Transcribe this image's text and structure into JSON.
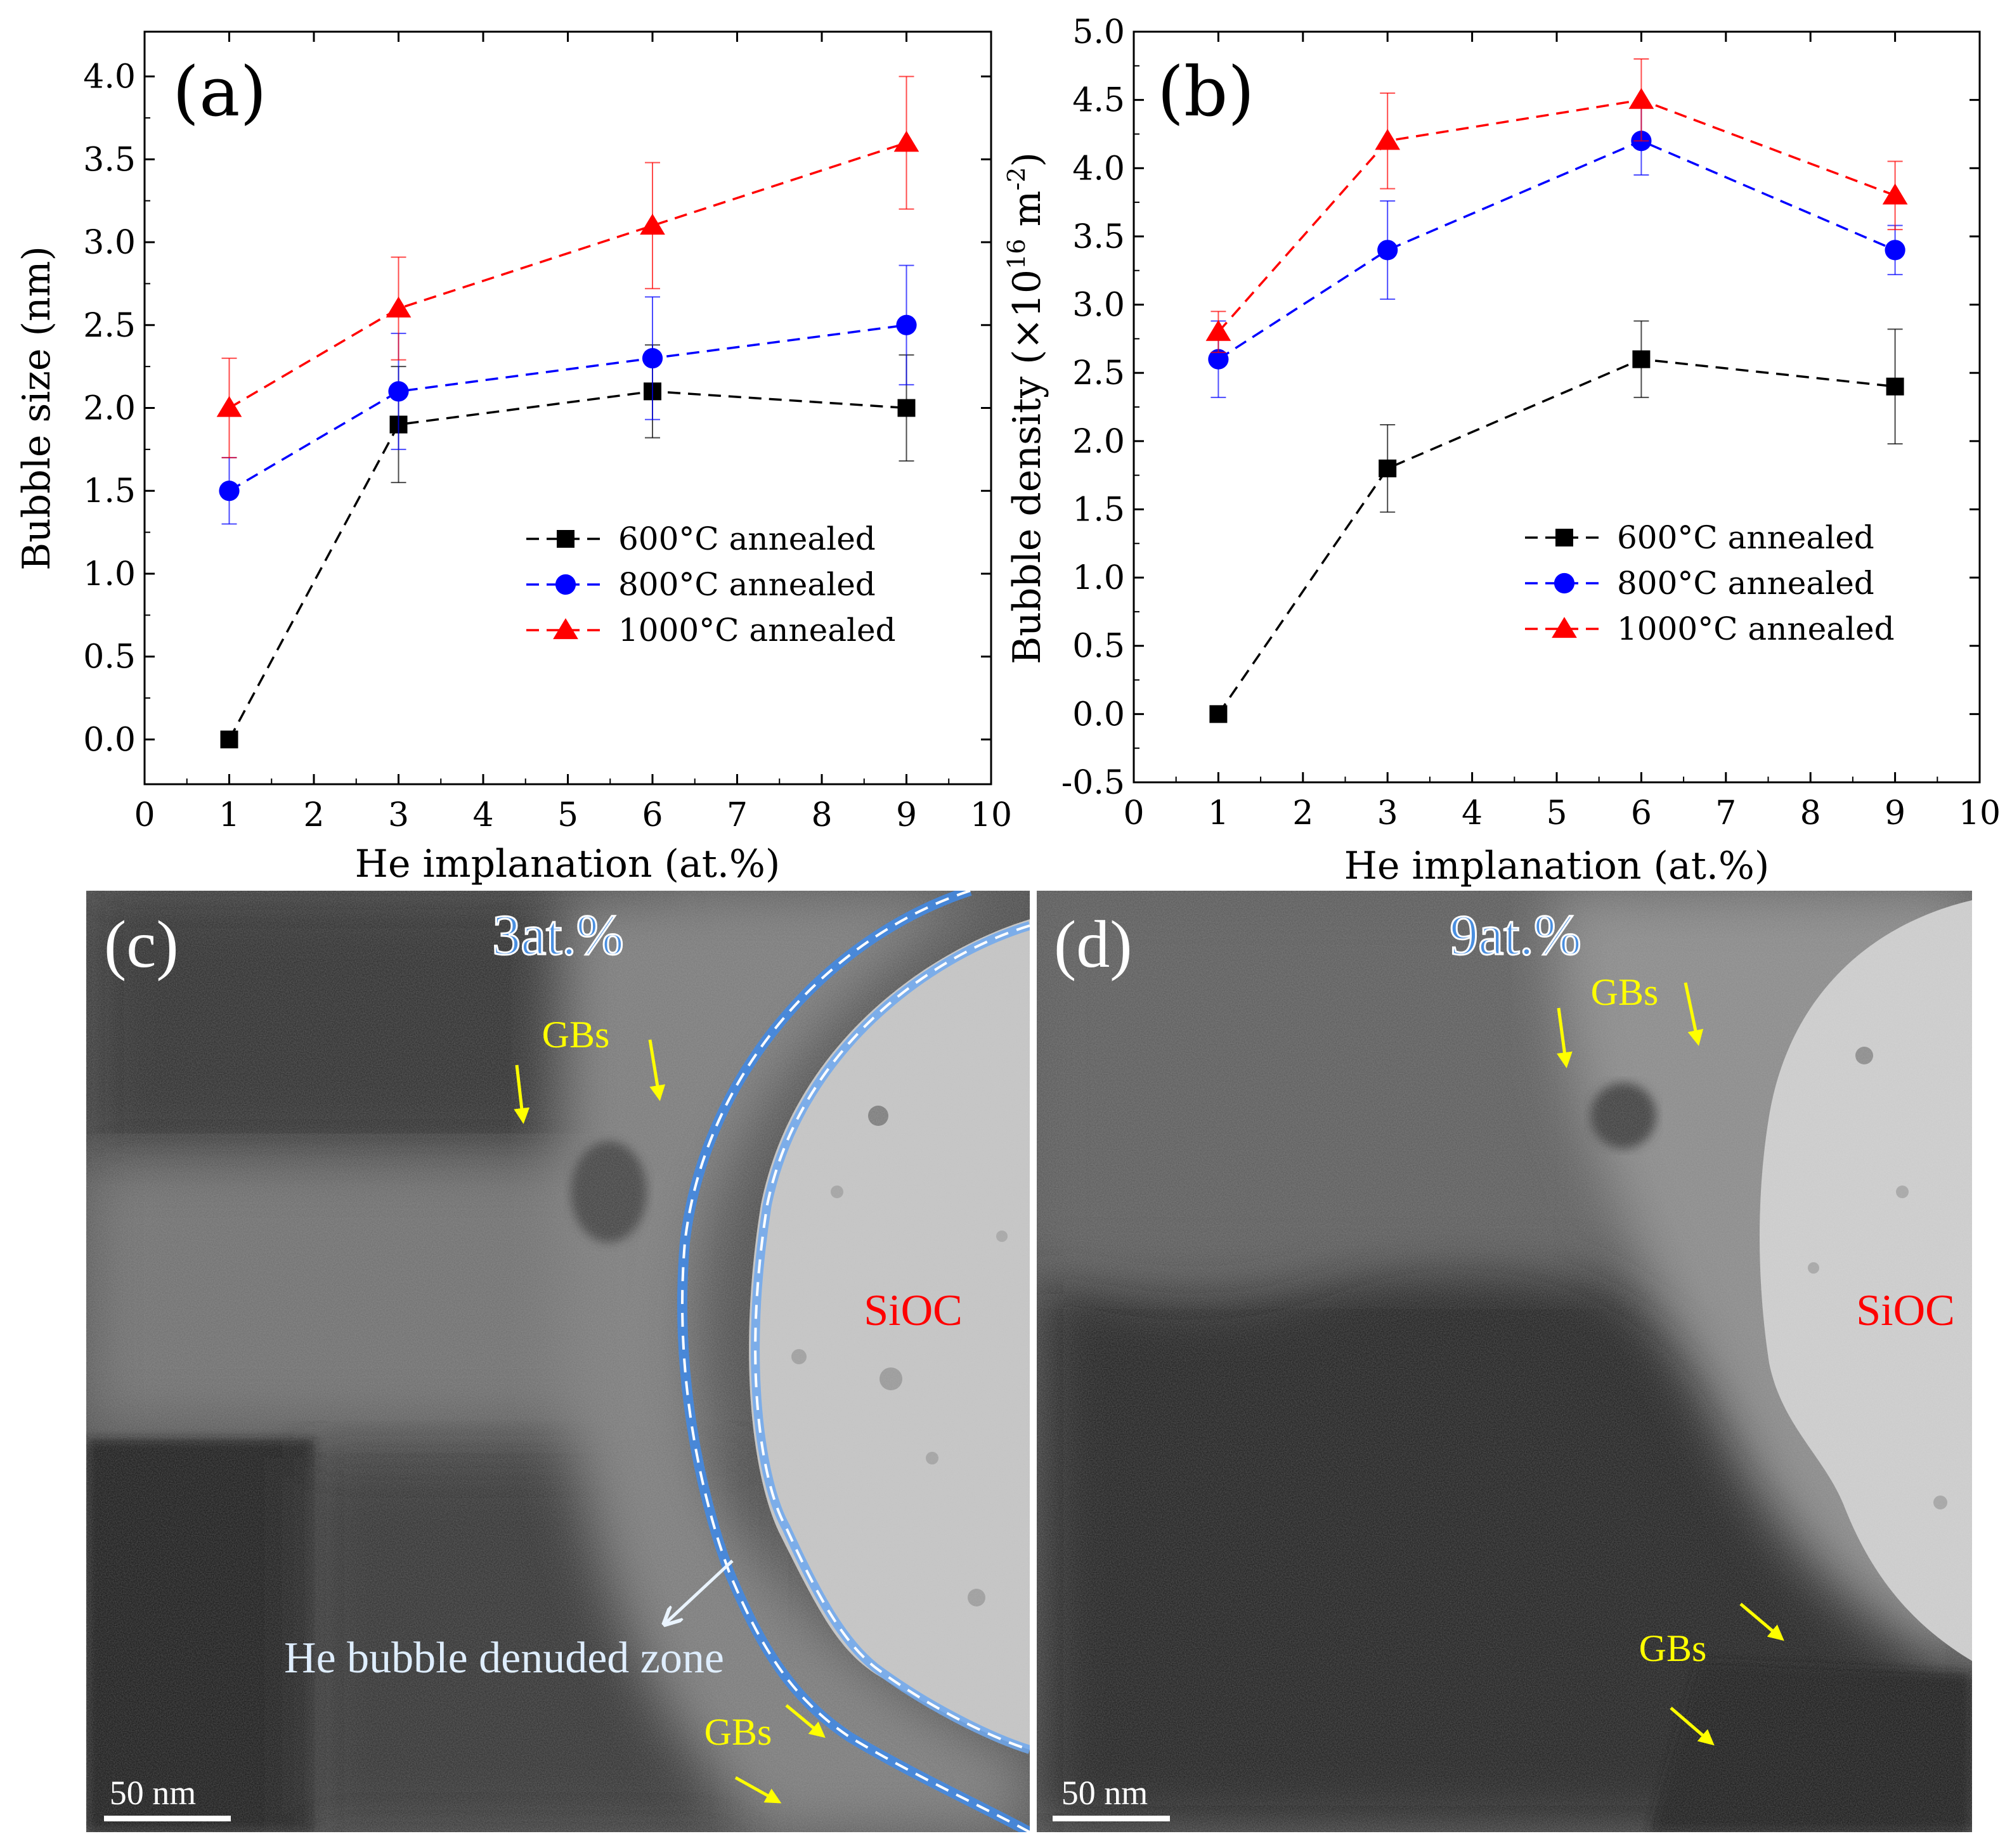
{
  "chart_data": [
    {
      "id": "a",
      "type": "line",
      "panel_label": "(a)",
      "xlabel": "He implanation (at.%)",
      "ylabel": "Bubble size (nm)",
      "xlim": [
        0,
        10
      ],
      "ylim": [
        -0.27,
        4.27
      ],
      "xticks": [
        0,
        1,
        2,
        3,
        4,
        5,
        6,
        7,
        8,
        9,
        10
      ],
      "yticks": [
        0.0,
        0.5,
        1.0,
        1.5,
        2.0,
        2.5,
        3.0,
        3.5,
        4.0
      ],
      "ytick_labels": [
        "0.0",
        "0.5",
        "1.0",
        "1.5",
        "2.0",
        "2.5",
        "3.0",
        "3.5",
        "4.0"
      ],
      "legend_position": "lower-right",
      "x": [
        1,
        3,
        6,
        9
      ],
      "series": [
        {
          "name": "600°C annealed",
          "color": "#000000",
          "marker": "square",
          "values": [
            0.0,
            1.9,
            2.1,
            2.0
          ],
          "errors": [
            null,
            0.35,
            0.28,
            0.32
          ]
        },
        {
          "name": "800°C annealed",
          "color": "#0000ff",
          "marker": "circle",
          "values": [
            1.5,
            2.1,
            2.3,
            2.5
          ],
          "errors": [
            0.2,
            0.35,
            0.37,
            0.36
          ]
        },
        {
          "name": "1000°C annealed",
          "color": "#ff0000",
          "marker": "triangle",
          "values": [
            2.0,
            2.6,
            3.1,
            3.6
          ],
          "errors": [
            0.3,
            0.31,
            0.38,
            0.4
          ]
        }
      ]
    },
    {
      "id": "b",
      "type": "line",
      "panel_label": "(b)",
      "xlabel": "He implanation (at.%)",
      "ylabel_prefix": "Bubble density (×10",
      "ylabel_exp1": "16",
      "ylabel_mid": " m",
      "ylabel_exp2": "-2",
      "ylabel_suffix": ")",
      "xlim": [
        0,
        10
      ],
      "ylim": [
        -0.5,
        5.0
      ],
      "xticks": [
        0,
        1,
        2,
        3,
        4,
        5,
        6,
        7,
        8,
        9,
        10
      ],
      "yticks": [
        -0.5,
        0.0,
        0.5,
        1.0,
        1.5,
        2.0,
        2.5,
        3.0,
        3.5,
        4.0,
        4.5,
        5.0
      ],
      "ytick_labels": [
        "-0.5",
        "0.0",
        "0.5",
        "1.0",
        "1.5",
        "2.0",
        "2.5",
        "3.0",
        "3.5",
        "4.0",
        "4.5",
        "5.0"
      ],
      "legend_position": "lower-right",
      "x": [
        1,
        3,
        6,
        9
      ],
      "series": [
        {
          "name": "600°C annealed",
          "color": "#000000",
          "marker": "square",
          "values": [
            0.0,
            1.8,
            2.6,
            2.4
          ],
          "errors": [
            null,
            0.32,
            0.28,
            0.42
          ]
        },
        {
          "name": "800°C annealed",
          "color": "#0000ff",
          "marker": "circle",
          "values": [
            2.6,
            3.4,
            4.2,
            3.4
          ],
          "errors": [
            0.28,
            0.36,
            0.25,
            0.18
          ]
        },
        {
          "name": "1000°C annealed",
          "color": "#ff0000",
          "marker": "triangle",
          "values": [
            2.8,
            4.2,
            4.5,
            3.8
          ],
          "errors": [
            0.15,
            0.35,
            0.3,
            0.25
          ]
        }
      ]
    }
  ],
  "micrographs": [
    {
      "id": "c",
      "panel_label": "(c)",
      "title": "3at.%",
      "phase_label": "SiOC",
      "gb_labels": [
        "GBs",
        "GBs"
      ],
      "zone_label": "He bubble denuded zone",
      "scale_bar": "50 nm"
    },
    {
      "id": "d",
      "panel_label": "(d)",
      "title": "9at.%",
      "phase_label": "SiOC",
      "gb_labels": [
        "GBs",
        "GBs"
      ],
      "scale_bar": "50 nm"
    }
  ],
  "colors": {
    "gb_yellow": "#ffff00",
    "sioc_red": "#ff0000",
    "title_blue": "#4a8fe0",
    "zone_blue": "#dfeeff"
  }
}
